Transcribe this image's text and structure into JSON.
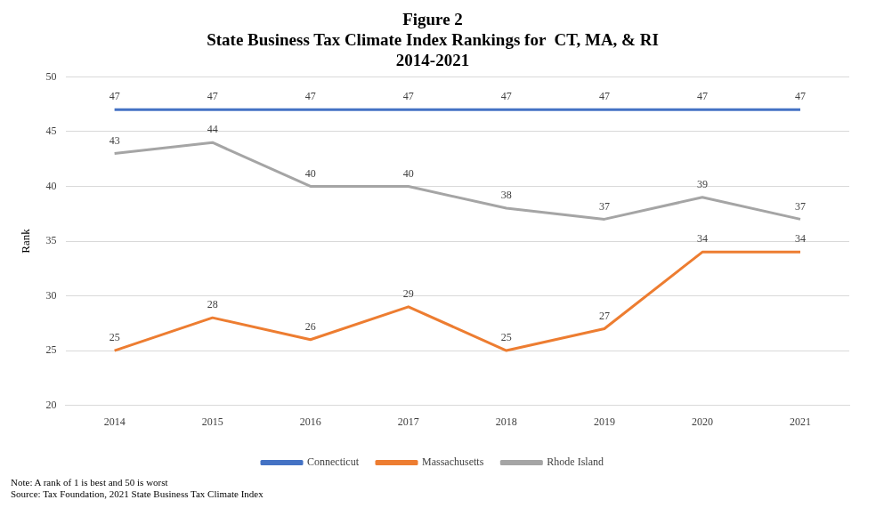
{
  "chart_data": {
    "type": "line",
    "title": "Figure 2\nState Business Tax Climate Index Rankings for  CT, MA, & RI\n2014-2021",
    "ylabel": "Rank",
    "categories": [
      "2014",
      "2015",
      "2016",
      "2017",
      "2018",
      "2019",
      "2020",
      "2021"
    ],
    "series": [
      {
        "name": "Connecticut",
        "color": "#4472c4",
        "values": [
          47,
          47,
          47,
          47,
          47,
          47,
          47,
          47
        ]
      },
      {
        "name": "Massachusetts",
        "color": "#ed7d31",
        "values": [
          25,
          28,
          26,
          29,
          25,
          27,
          34,
          34
        ]
      },
      {
        "name": "Rhode Island",
        "color": "#a5a5a5",
        "values": [
          43,
          44,
          40,
          40,
          38,
          37,
          39,
          37
        ]
      }
    ],
    "ylim": [
      20,
      50
    ],
    "yticks": [
      20,
      25,
      30,
      35,
      40,
      45,
      50
    ],
    "grid": "y",
    "legend": "bottom",
    "data_labels": true,
    "marker": "none",
    "line_style": "solid",
    "annotations": [
      "Note: A rank of 1 is best and 50 is worst",
      "Source: Tax Foundation, 2021 State Business Tax Climate Index"
    ]
  }
}
